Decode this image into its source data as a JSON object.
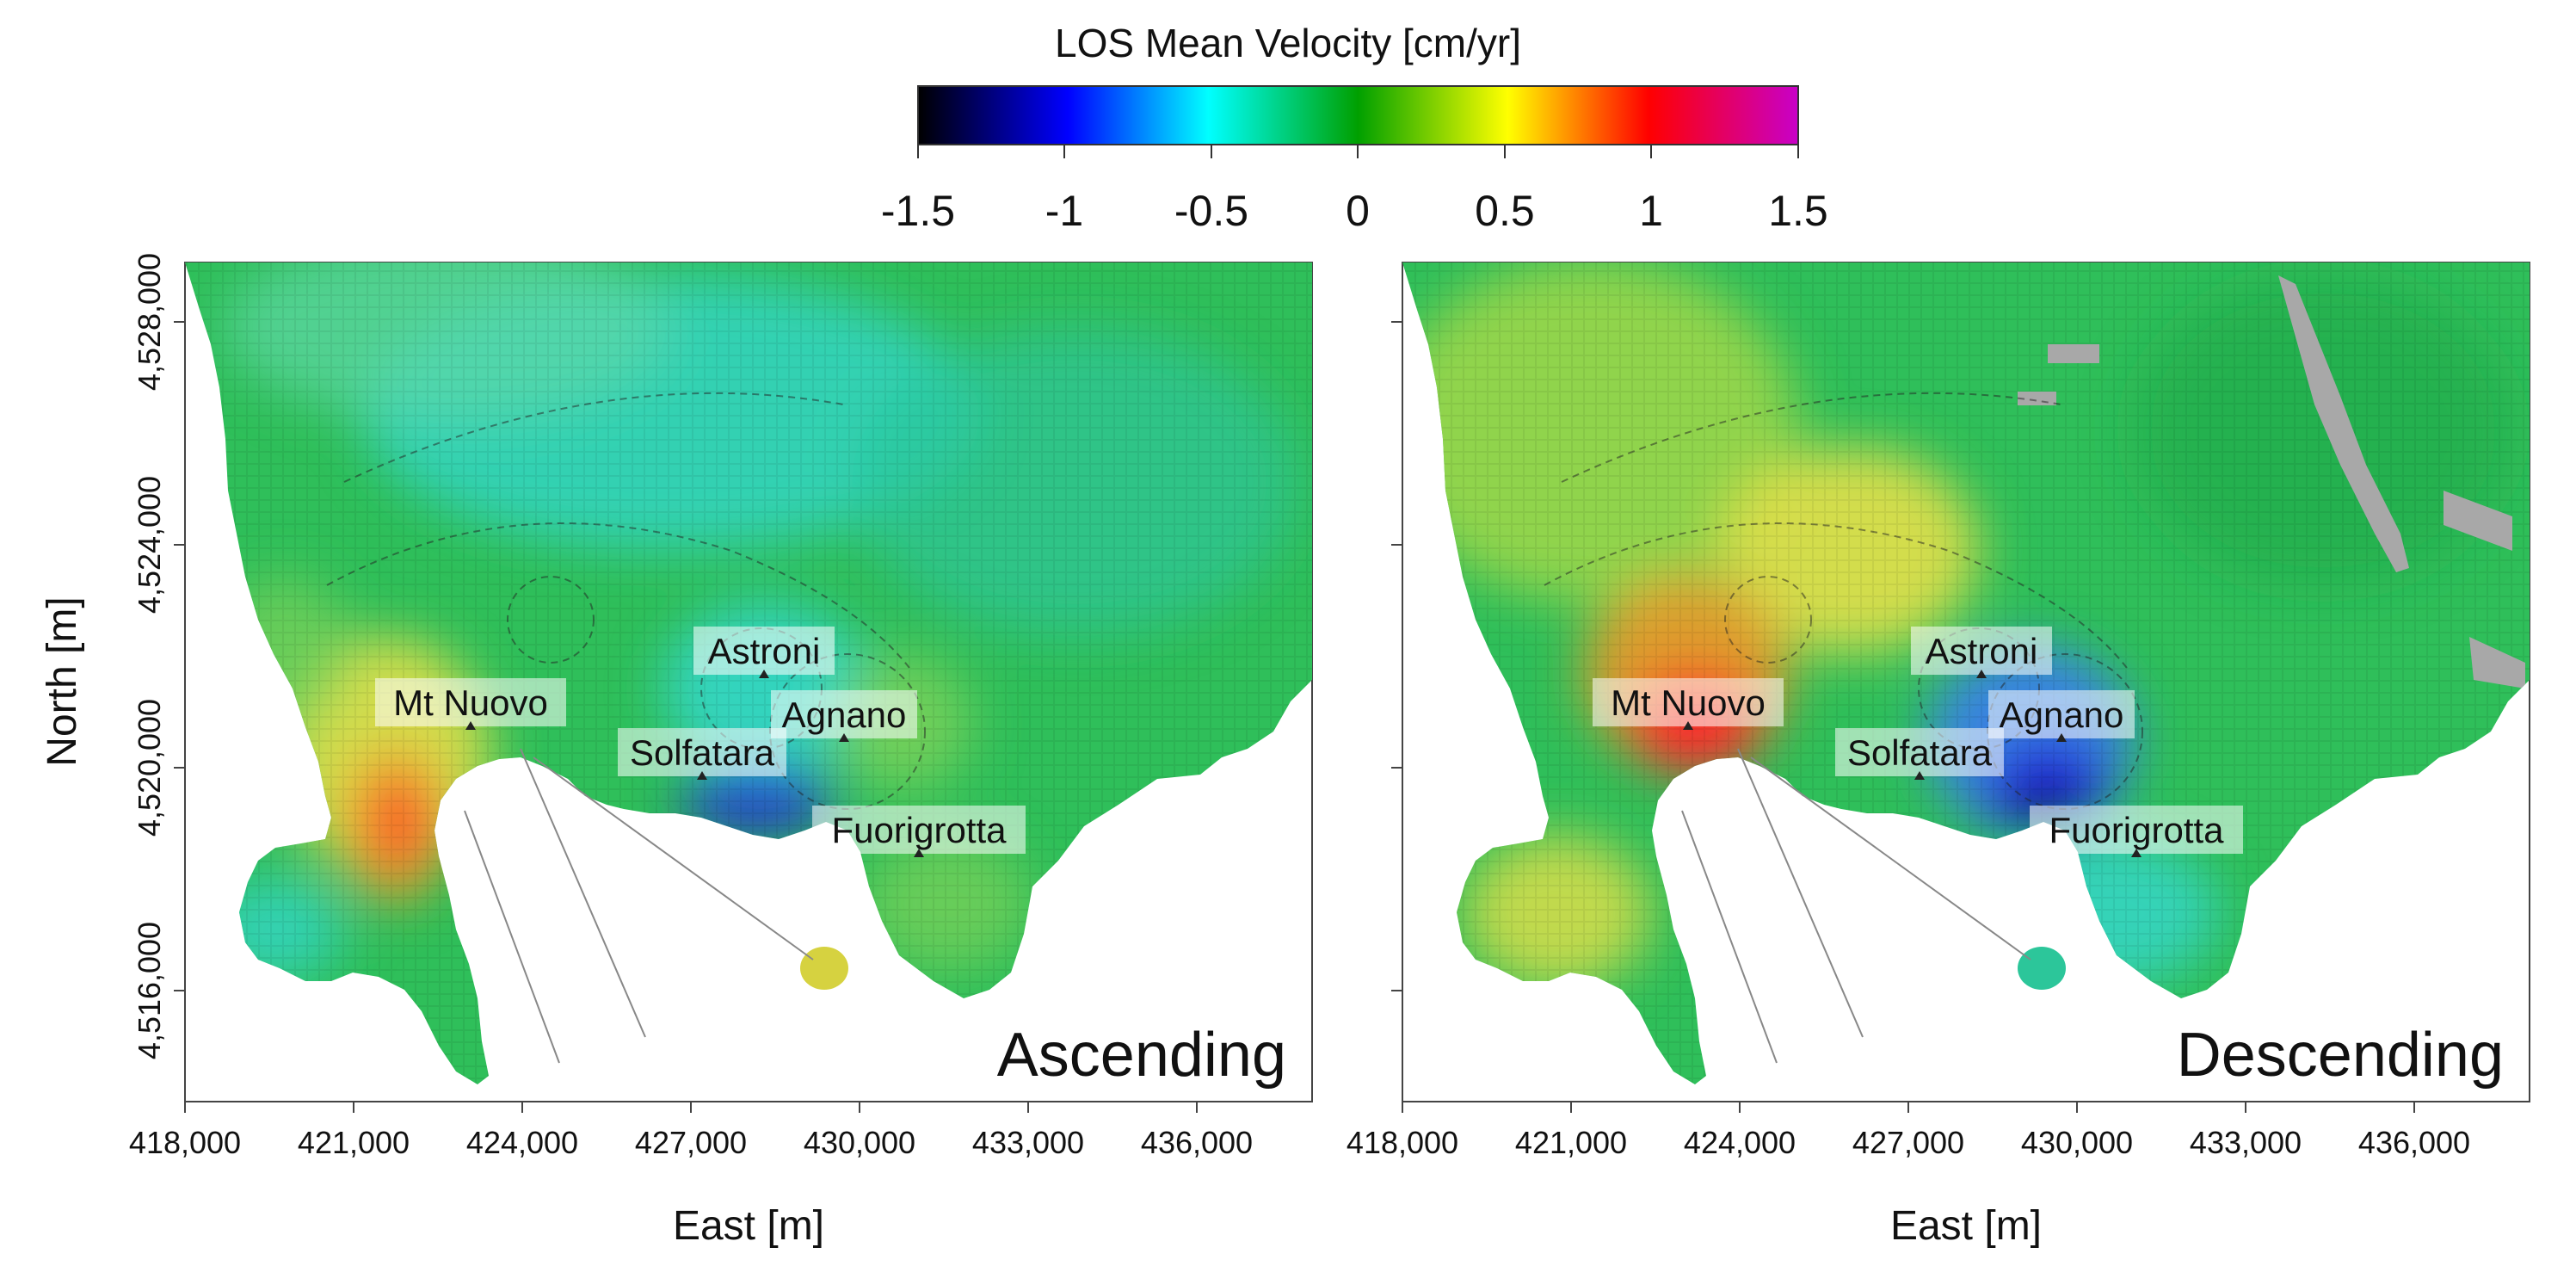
{
  "colorbar": {
    "title": "LOS Mean Velocity [cm/yr]",
    "ticks": [
      "-1.5",
      "-1",
      "-0.5",
      "0",
      "0.5",
      "1",
      "1.5"
    ],
    "colors": [
      "#000000",
      "#0000ff",
      "#00ffff",
      "#00a000",
      "#ffff00",
      "#ff0000",
      "#c800c8"
    ]
  },
  "axes": {
    "x_label": "East [m]",
    "y_label": "North [m]",
    "x_ticks": [
      "418,000",
      "421,000",
      "424,000",
      "427,000",
      "430,000",
      "433,000",
      "436,000"
    ],
    "y_ticks": [
      "4,528,000",
      "4,524,000",
      "4,520,000",
      "4,516,000"
    ]
  },
  "panels": [
    {
      "title": "Ascending",
      "places": [
        {
          "name": "Mt Nuovo",
          "easting": 423000,
          "northing": 4520800
        },
        {
          "name": "Astroni",
          "easting": 428500,
          "northing": 4521700
        },
        {
          "name": "Agnano",
          "easting": 429800,
          "northing": 4520600
        },
        {
          "name": "Solfatara",
          "easting": 427300,
          "northing": 4519900
        },
        {
          "name": "Fuorigrotta",
          "easting": 431300,
          "northing": 4518500
        }
      ]
    },
    {
      "title": "Descending",
      "places": [
        {
          "name": "Mt Nuovo",
          "easting": 423000,
          "northing": 4520800
        },
        {
          "name": "Astroni",
          "easting": 428500,
          "northing": 4521700
        },
        {
          "name": "Agnano",
          "easting": 429800,
          "northing": 4520600
        },
        {
          "name": "Solfatara",
          "easting": 427300,
          "northing": 4519900
        },
        {
          "name": "Fuorigrotta",
          "easting": 431300,
          "northing": 4518500
        }
      ]
    }
  ],
  "colors": {
    "base_green": "#2fbf5a",
    "light_green": "#7fd35a",
    "cyan_zone": "#35d6c8",
    "yellow_zone": "#e6e04a",
    "orange_zone": "#f09a2a",
    "red_zone": "#ff2a2a",
    "blue_zone": "#2222d8",
    "dark_zone": "#111133",
    "gray_mask": "#a8a8a8"
  }
}
